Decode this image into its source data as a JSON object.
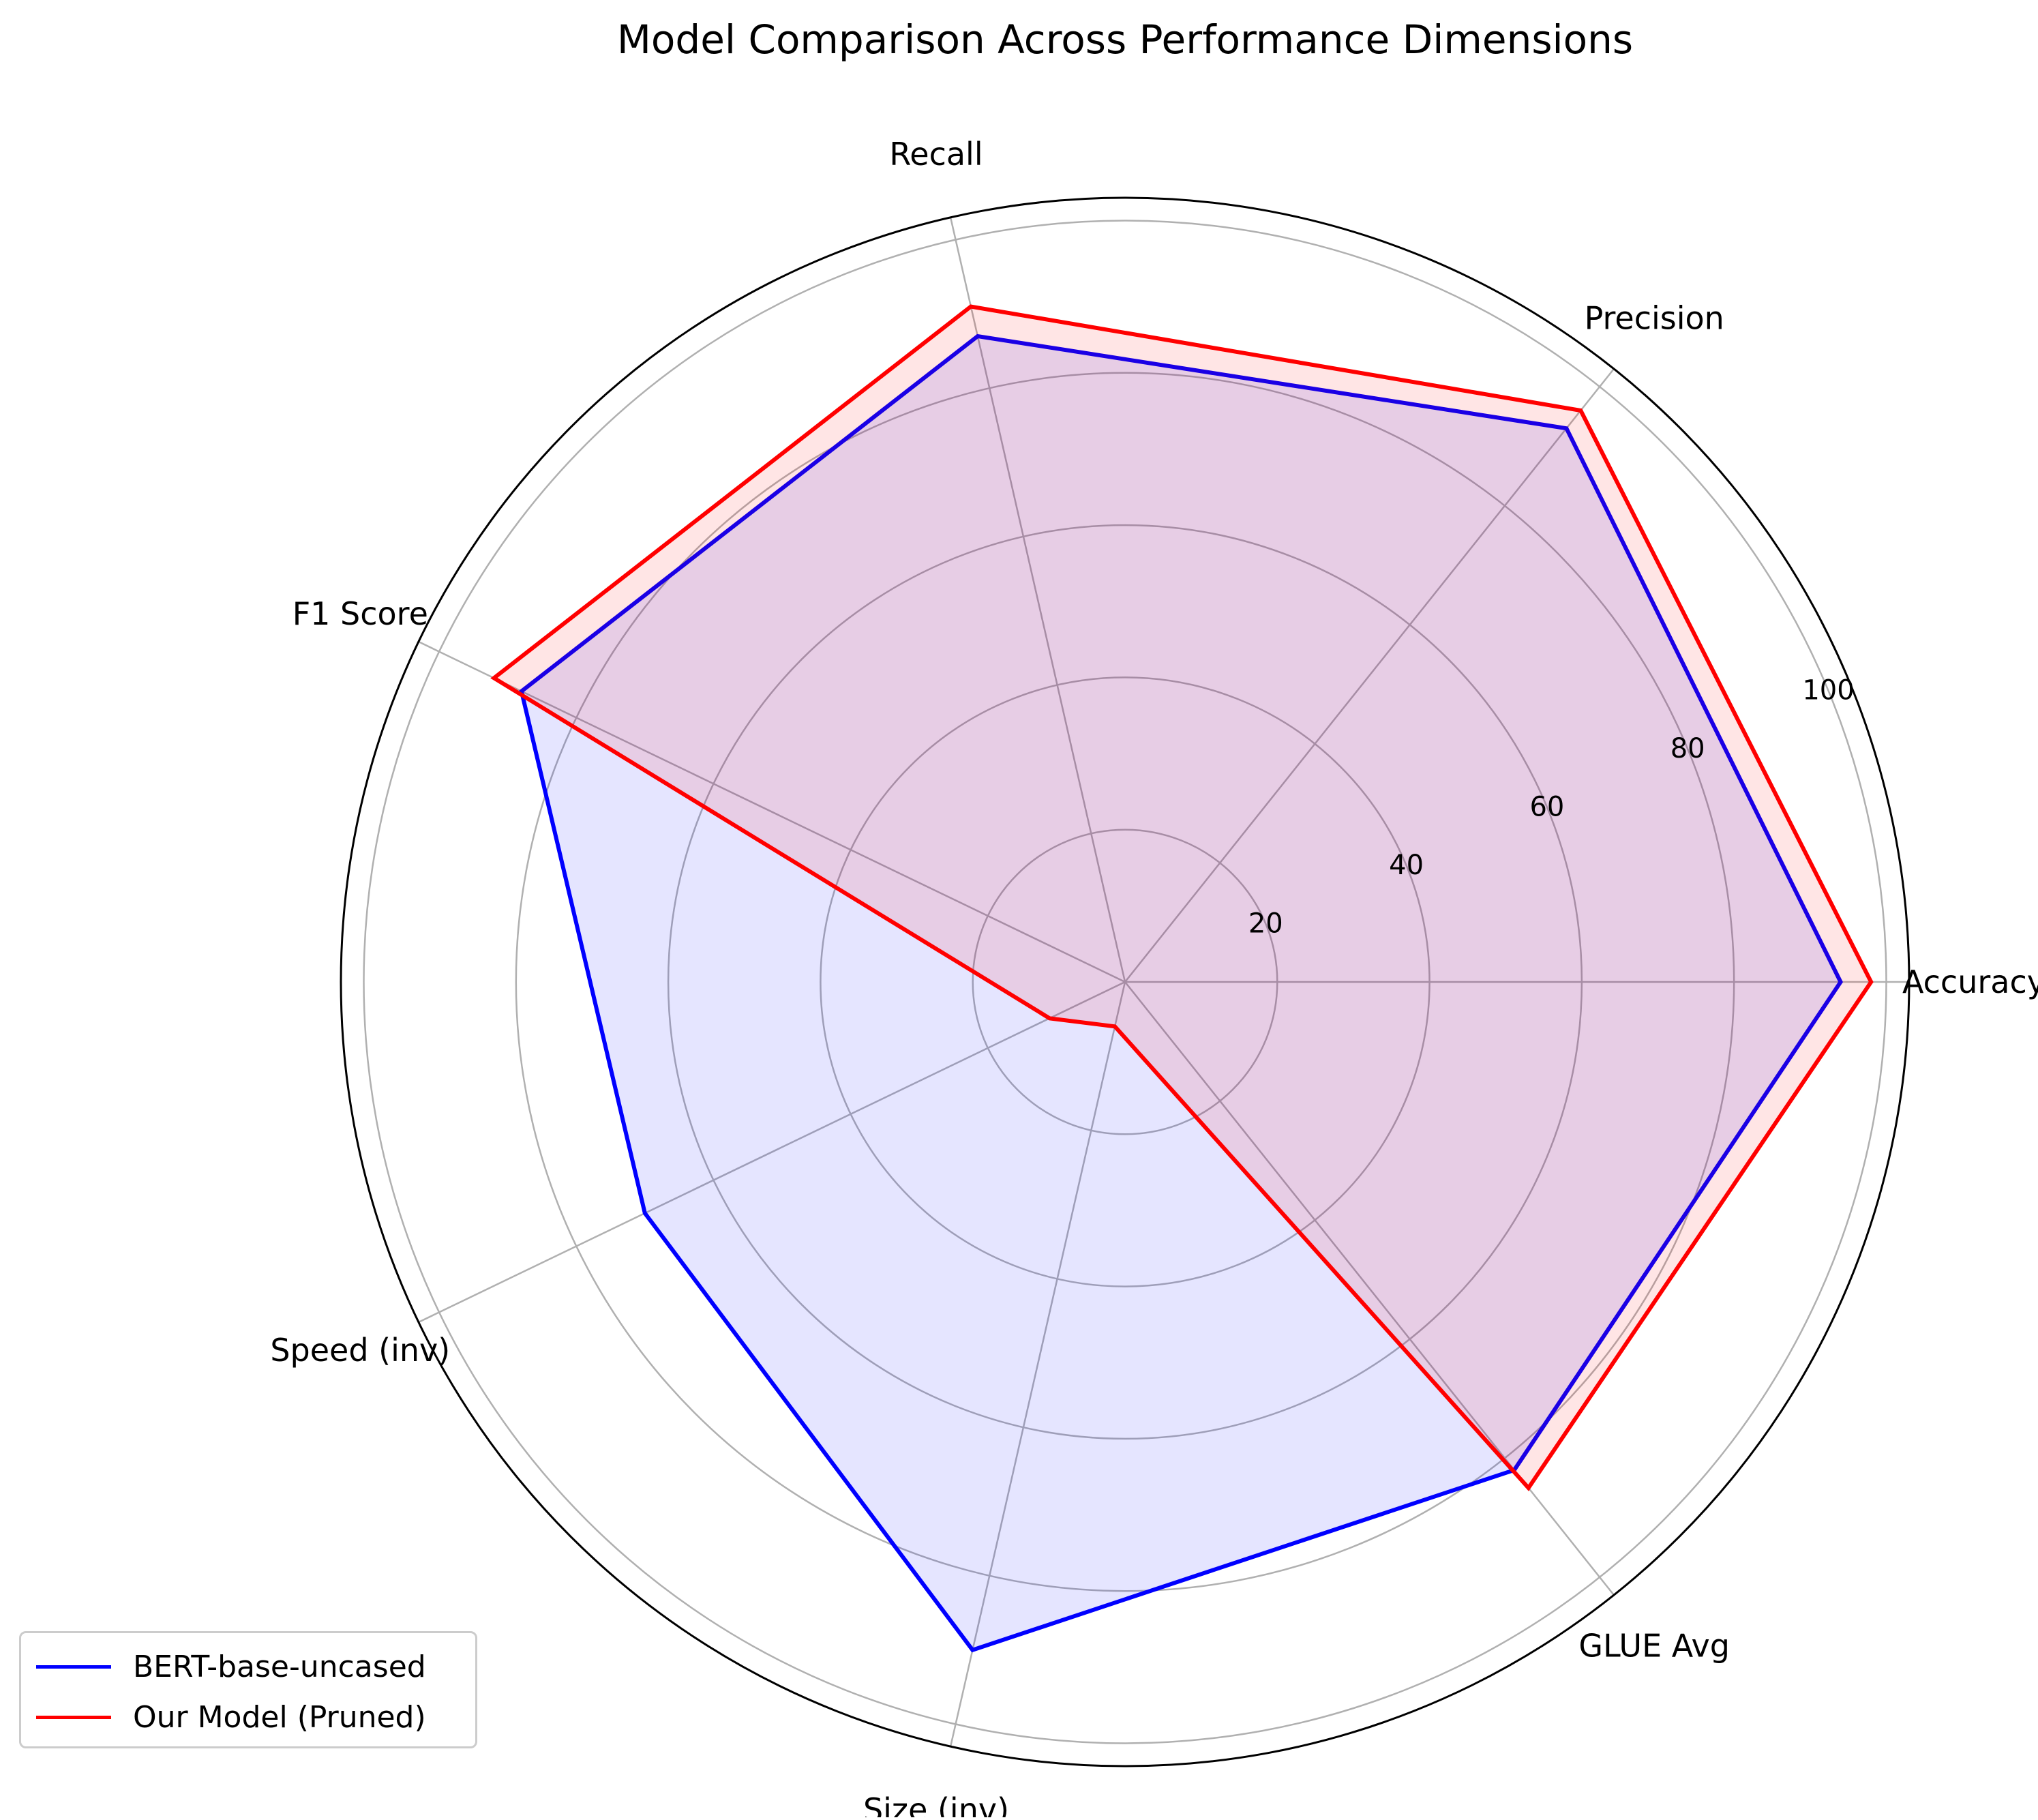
{
  "chart_data": {
    "type": "radar",
    "title": "Model Comparison Across Performance Dimensions",
    "categories": [
      "Accuracy",
      "Precision",
      "Recall",
      "F1 Score",
      "Speed (inv)",
      "Size (inv)",
      "GLUE Avg"
    ],
    "radial_ticks": [
      20,
      40,
      60,
      80,
      100
    ],
    "rlim": [
      0,
      103
    ],
    "grid": true,
    "legend_position": "lower-left",
    "series": [
      {
        "name": "BERT-base-uncased",
        "values": [
          94,
          93,
          87,
          88,
          70,
          90,
          82
        ],
        "color": "#0000ff",
        "fill": "#0000ff",
        "fill_opacity": 0.1
      },
      {
        "name": "Our Model (Pruned)",
        "values": [
          98,
          96,
          91,
          92,
          11,
          6,
          85
        ],
        "color": "#ff0000",
        "fill": "#ff0000",
        "fill_opacity": 0.1
      }
    ]
  }
}
